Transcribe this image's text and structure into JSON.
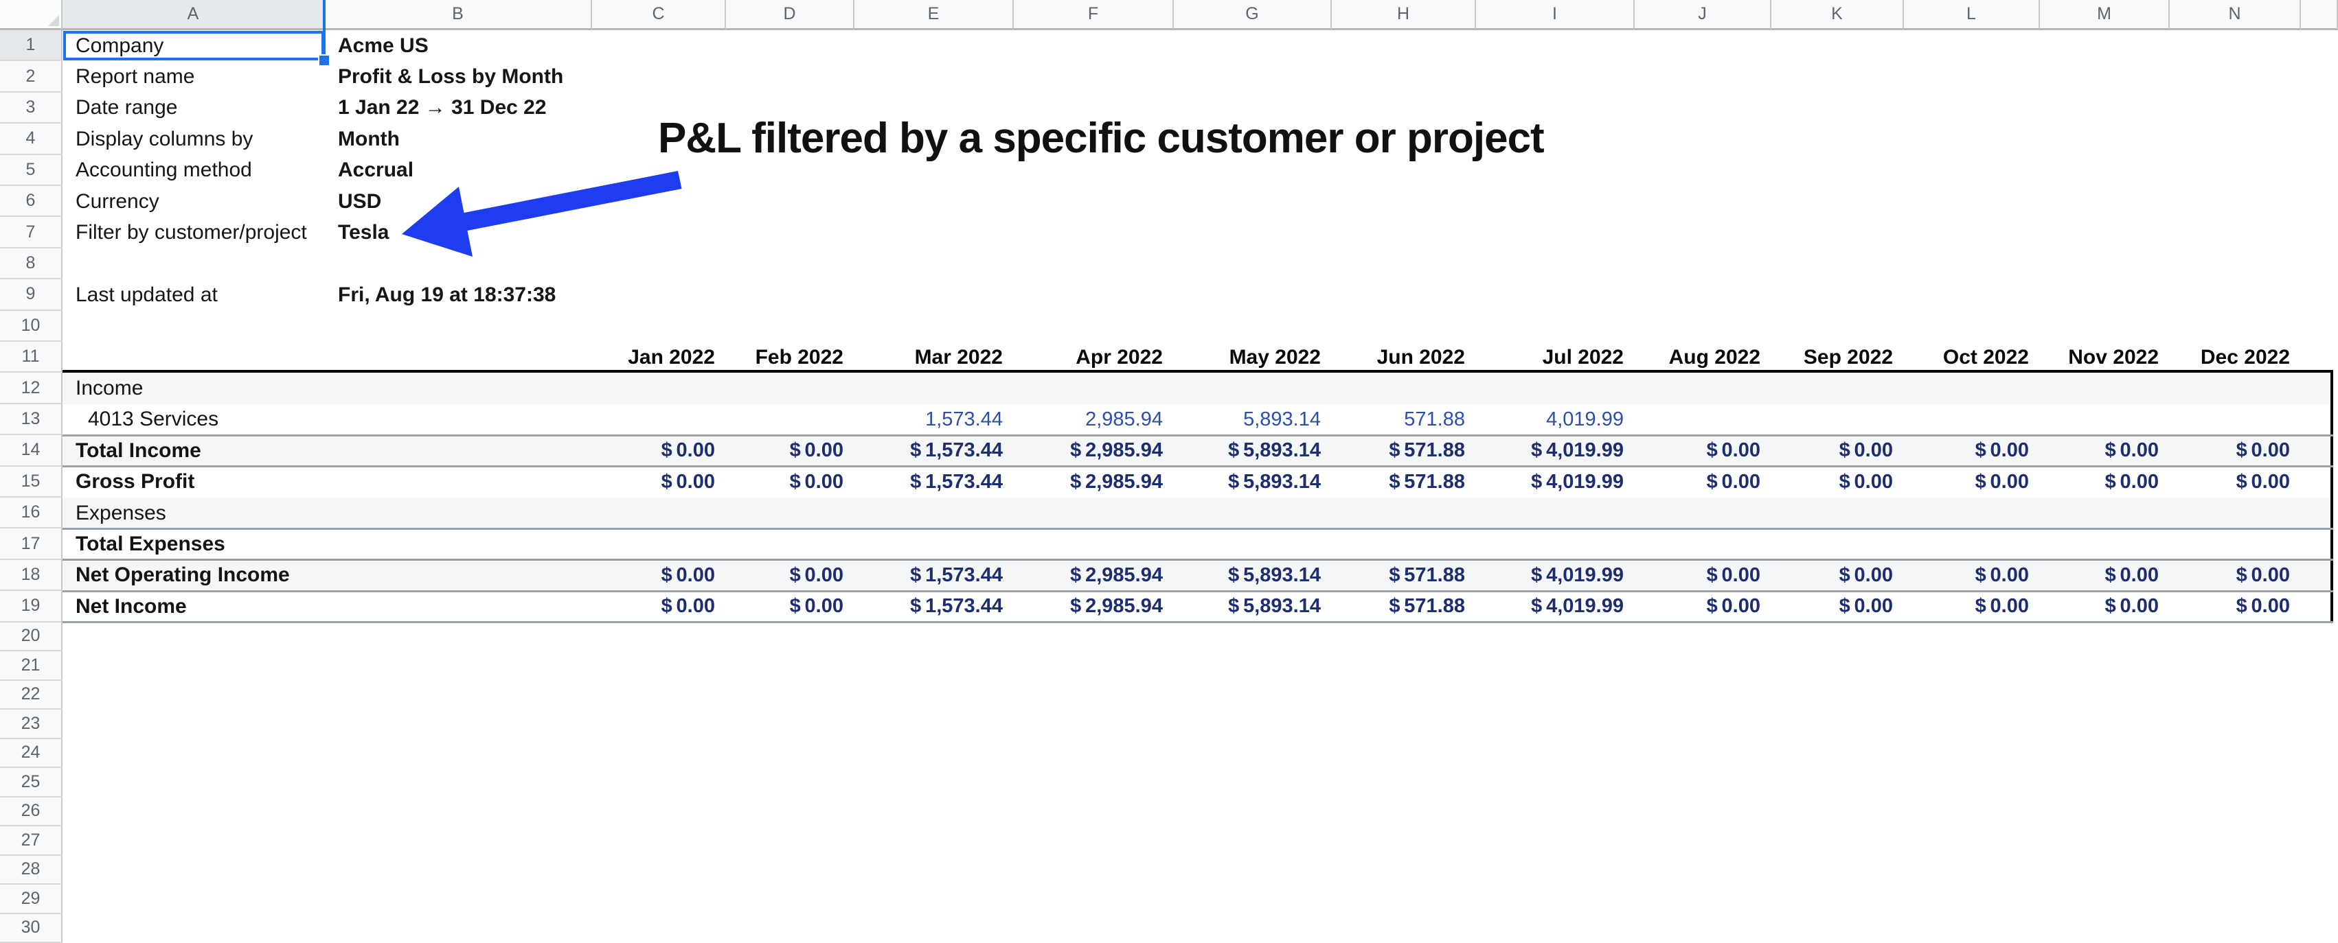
{
  "sheet": {
    "column_letters": [
      "A",
      "B",
      "C",
      "D",
      "E",
      "F",
      "G",
      "H",
      "I",
      "J",
      "K",
      "L",
      "M",
      "N"
    ],
    "row_numbers": [
      1,
      2,
      3,
      4,
      5,
      6,
      7,
      8,
      9,
      10,
      11,
      12,
      13,
      14,
      15,
      16,
      17,
      18,
      19,
      20,
      21,
      22,
      23,
      24,
      25,
      26,
      27,
      28,
      29,
      30
    ],
    "selection": {
      "active_cell": "A1",
      "selected_column": "A",
      "selected_row": 1,
      "accent": "#1a73e8"
    }
  },
  "settings": [
    {
      "row": 1,
      "label": "Company",
      "value": "Acme US"
    },
    {
      "row": 2,
      "label": "Report name",
      "value": "Profit & Loss by Month"
    },
    {
      "row": 3,
      "label": "Date range",
      "value": "1 Jan 22 → 31 Dec 22"
    },
    {
      "row": 4,
      "label": "Display columns by",
      "value": "Month"
    },
    {
      "row": 5,
      "label": "Accounting method",
      "value": "Accrual"
    },
    {
      "row": 6,
      "label": "Currency",
      "value": "USD"
    },
    {
      "row": 7,
      "label": "Filter by customer/project",
      "value": "Tesla"
    },
    {
      "row": 9,
      "label": "Last updated at",
      "value": "Fri, Aug 19 at 18:37:38"
    }
  ],
  "annotation": {
    "title": "P&L filtered by a specific customer or project",
    "arrow_color": "#1e3cf0"
  },
  "report": {
    "months": [
      "Jan 2022",
      "Feb 2022",
      "Mar 2022",
      "Apr 2022",
      "May 2022",
      "Jun 2022",
      "Jul 2022",
      "Aug 2022",
      "Sep 2022",
      "Oct 2022",
      "Nov 2022",
      "Dec 2022"
    ],
    "header_row": 11,
    "rows": [
      {
        "row": 12,
        "label": "Income",
        "style": "section",
        "band": true,
        "border_bottom": false,
        "values": [
          "",
          "",
          "",
          "",
          "",
          "",
          "",
          "",
          "",
          "",
          "",
          ""
        ]
      },
      {
        "row": 13,
        "label": "4013 Services",
        "style": "account",
        "band": false,
        "border_bottom": true,
        "values": [
          "",
          "",
          "1,573.44",
          "2,985.94",
          "5,893.14",
          "571.88",
          "4,019.99",
          "",
          "",
          "",
          "",
          ""
        ]
      },
      {
        "row": 14,
        "label": "Total Income",
        "style": "total",
        "band": true,
        "border_bottom": true,
        "values": [
          "$ 0.00",
          "$ 0.00",
          "$ 1,573.44",
          "$ 2,985.94",
          "$ 5,893.14",
          "$ 571.88",
          "$ 4,019.99",
          "$ 0.00",
          "$ 0.00",
          "$ 0.00",
          "$ 0.00",
          "$ 0.00"
        ]
      },
      {
        "row": 15,
        "label": "Gross Profit",
        "style": "total",
        "band": false,
        "border_bottom": false,
        "values": [
          "$ 0.00",
          "$ 0.00",
          "$ 1,573.44",
          "$ 2,985.94",
          "$ 5,893.14",
          "$ 571.88",
          "$ 4,019.99",
          "$ 0.00",
          "$ 0.00",
          "$ 0.00",
          "$ 0.00",
          "$ 0.00"
        ]
      },
      {
        "row": 16,
        "label": "Expenses",
        "style": "section",
        "band": true,
        "border_bottom": true,
        "values": [
          "",
          "",
          "",
          "",
          "",
          "",
          "",
          "",
          "",
          "",
          "",
          ""
        ]
      },
      {
        "row": 17,
        "label": "Total Expenses",
        "style": "total",
        "band": false,
        "border_bottom": true,
        "values": [
          "",
          "",
          "",
          "",
          "",
          "",
          "",
          "",
          "",
          "",
          "",
          ""
        ]
      },
      {
        "row": 18,
        "label": "Net Operating Income",
        "style": "total",
        "band": true,
        "border_bottom": true,
        "values": [
          "$ 0.00",
          "$ 0.00",
          "$ 1,573.44",
          "$ 2,985.94",
          "$ 5,893.14",
          "$ 571.88",
          "$ 4,019.99",
          "$ 0.00",
          "$ 0.00",
          "$ 0.00",
          "$ 0.00",
          "$ 0.00"
        ]
      },
      {
        "row": 19,
        "label": "Net Income",
        "style": "total",
        "band": false,
        "border_bottom": true,
        "values": [
          "$ 0.00",
          "$ 0.00",
          "$ 1,573.44",
          "$ 2,985.94",
          "$ 5,893.14",
          "$ 571.88",
          "$ 4,019.99",
          "$ 0.00",
          "$ 0.00",
          "$ 0.00",
          "$ 0.00",
          "$ 0.00"
        ]
      }
    ]
  }
}
